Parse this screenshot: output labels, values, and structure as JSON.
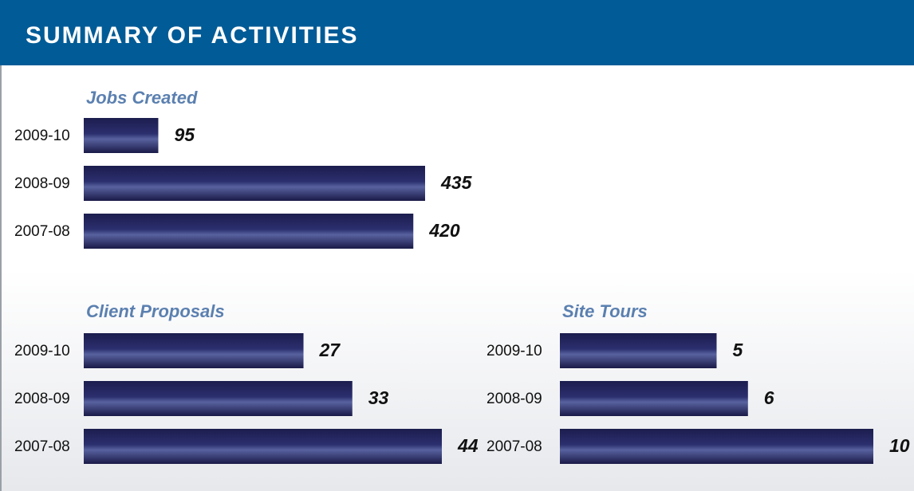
{
  "header": {
    "title": "SUMMARY OF ACTIVITIES"
  },
  "chart_data": [
    {
      "type": "bar",
      "orientation": "horizontal",
      "title": "Jobs Created",
      "categories": [
        "2009-10",
        "2008-09",
        "2007-08"
      ],
      "values": [
        95,
        435,
        420
      ],
      "color": "#2b2f6e"
    },
    {
      "type": "bar",
      "orientation": "horizontal",
      "title": "Client Proposals",
      "categories": [
        "2009-10",
        "2008-09",
        "2007-08"
      ],
      "values": [
        27,
        33,
        44
      ],
      "color": "#2b2f6e"
    },
    {
      "type": "bar",
      "orientation": "horizontal",
      "title": "Site Tours",
      "categories": [
        "2009-10",
        "2008-09",
        "2007-08"
      ],
      "values": [
        5,
        6,
        10
      ],
      "color": "#2b2f6e"
    }
  ]
}
